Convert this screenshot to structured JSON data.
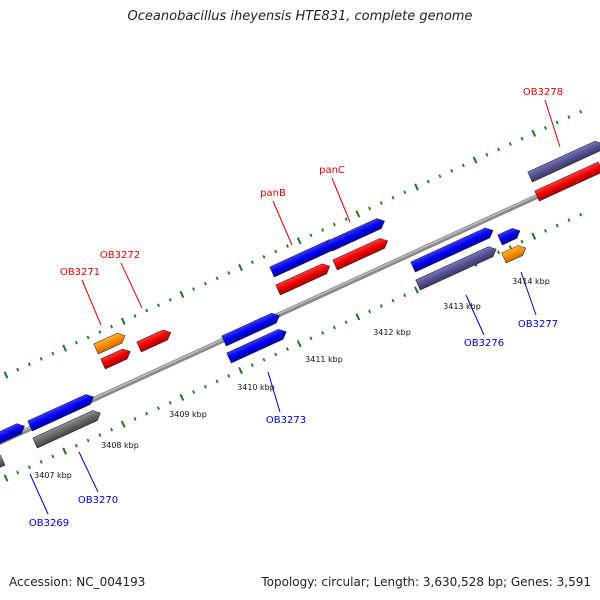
{
  "header": {
    "title": "Oceanobacillus iheyensis HTE831, complete genome"
  },
  "footer": {
    "accession": "Accession: NC_004193",
    "summary": "Topology: circular; Length: 3,630,528 bp; Genes: 3,591"
  },
  "colors": {
    "forward_gene": "#0000ee",
    "reverse_gene": "#ee0000",
    "gray_gene": "#666666",
    "purple_gene": "#55508f",
    "orange_gene": "#ff8c00",
    "backbone": "#8c8c8c",
    "tick": "#1a7a1a",
    "red_label": "#e00000",
    "blue_label": "#0000cc"
  },
  "scale_labels": [
    "3407 kbp",
    "3408 kbp",
    "3409 kbp",
    "3410 kbp",
    "3411 kbp",
    "3412 kbp",
    "3413 kbp",
    "3414 kbp"
  ],
  "gene_labels": {
    "top": [
      "OB3271",
      "OB3272",
      "panB",
      "panC",
      "OB3278"
    ],
    "bottom": [
      "OB3269",
      "OB3270",
      "OB3273",
      "OB3276",
      "OB3277"
    ]
  }
}
